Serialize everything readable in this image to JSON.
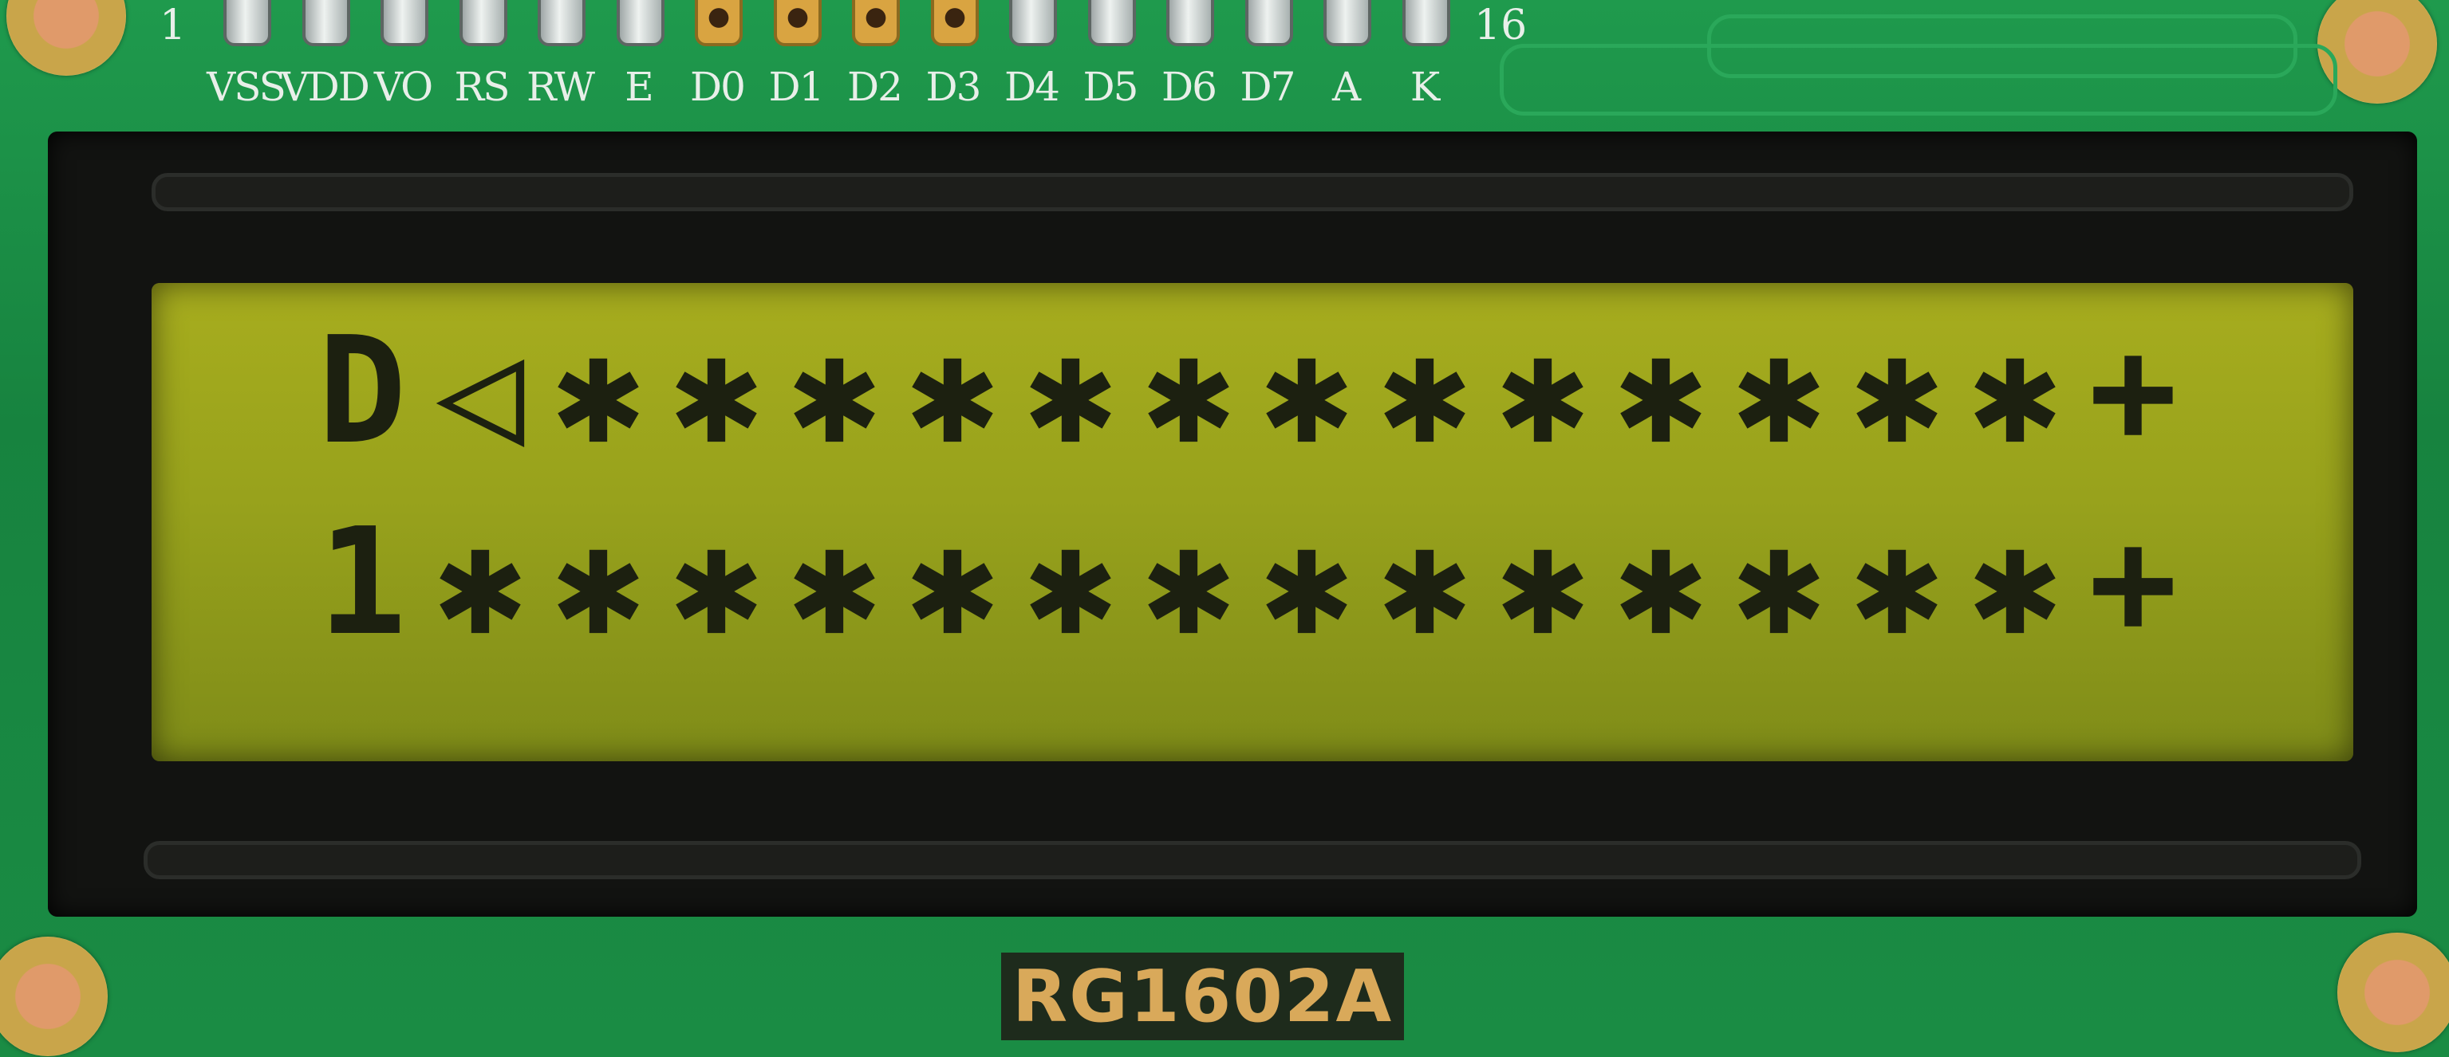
{
  "board": {
    "pin_first": "1",
    "pin_last": "16",
    "pins": [
      {
        "label": "VSS",
        "type": "silver"
      },
      {
        "label": "VDD",
        "type": "silver"
      },
      {
        "label": "VO",
        "type": "silver"
      },
      {
        "label": "RS",
        "type": "silver"
      },
      {
        "label": "RW",
        "type": "silver"
      },
      {
        "label": "E",
        "type": "silver"
      },
      {
        "label": "D0",
        "type": "gold"
      },
      {
        "label": "D1",
        "type": "gold"
      },
      {
        "label": "D2",
        "type": "gold"
      },
      {
        "label": "D3",
        "type": "gold"
      },
      {
        "label": "D4",
        "type": "silver"
      },
      {
        "label": "D5",
        "type": "silver"
      },
      {
        "label": "D6",
        "type": "silver"
      },
      {
        "label": "D7",
        "type": "silver"
      },
      {
        "label": "A",
        "type": "silver"
      },
      {
        "label": "K",
        "type": "silver"
      }
    ],
    "model": "RG1602A"
  },
  "lcd": {
    "rows": [
      [
        "D",
        "◁",
        "✱",
        "✱",
        "✱",
        "✱",
        "✱",
        "✱",
        "✱",
        "✱",
        "✱",
        "✱",
        "✱",
        "✱",
        "✱",
        "+"
      ],
      [
        "1",
        "✱",
        "✱",
        "✱",
        "✱",
        "✱",
        "✱",
        "✱",
        "✱",
        "✱",
        "✱",
        "✱",
        "✱",
        "✱",
        "✱",
        "+"
      ]
    ]
  },
  "colors": {
    "pcb": "#1c8a45",
    "lcd_background": "#9ea41c",
    "lcd_text": "#1c2010",
    "bezel": "#121311",
    "silkscreen": "#e8efe9"
  }
}
